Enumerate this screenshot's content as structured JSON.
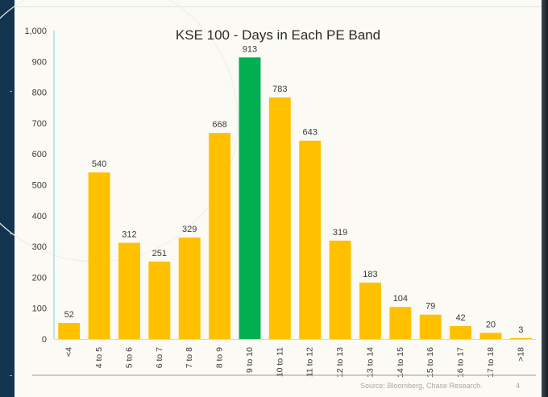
{
  "chart_data": {
    "type": "bar",
    "title": "KSE 100 - Days in Each PE Band",
    "xlabel": "",
    "ylabel": "",
    "ylim": [
      0,
      1000
    ],
    "yticks": [
      "0",
      "100",
      "200",
      "300",
      "400",
      "500",
      "600",
      "700",
      "800",
      "900",
      "1,000"
    ],
    "ytick_values": [
      0,
      100,
      200,
      300,
      400,
      500,
      600,
      700,
      800,
      900,
      1000
    ],
    "categories": [
      "<4",
      "4 to 5",
      "5 to 6",
      "6 to 7",
      "7 to 8",
      "8 to 9",
      "9 to 10",
      "10 to 11",
      "11 to 12",
      "12 to 13",
      "13 to 14",
      "14 to 15",
      "15 to 16",
      "16 to 17",
      "17 to 18",
      ">18"
    ],
    "values": [
      52,
      540,
      312,
      251,
      329,
      668,
      913,
      783,
      643,
      319,
      183,
      104,
      79,
      42,
      20,
      3
    ],
    "highlight_category": "9 to 10",
    "bar_color": "#FFC000",
    "highlight_color": "#00B050"
  },
  "footer": {
    "source": "Source: Bloomberg, Chase Research.",
    "page_number": "4"
  }
}
